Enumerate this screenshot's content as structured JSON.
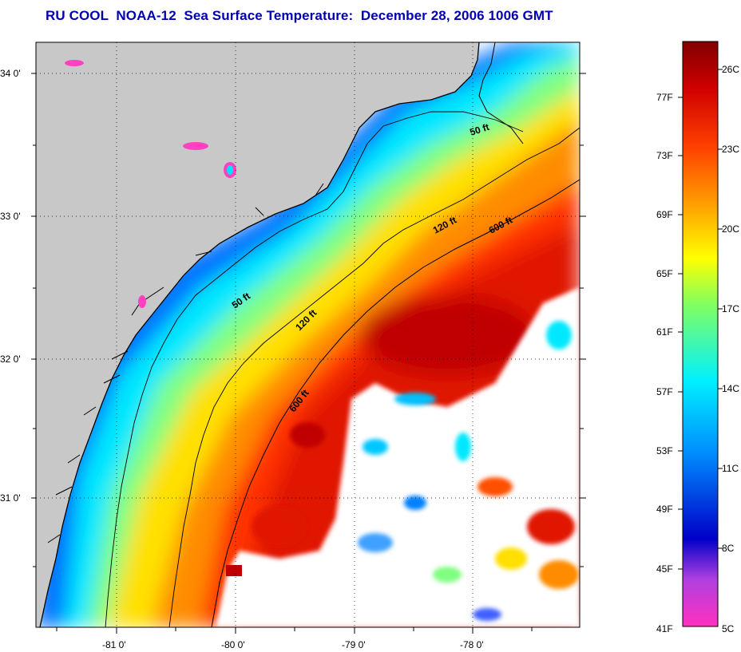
{
  "title": "RU COOL  NOAA-12  Sea Surface Temperature:  December 28, 2006 1006 GMT",
  "map": {
    "lon_ticks": [
      "-81 0'",
      "-80 0'",
      "-79 0'",
      "-78 0'"
    ],
    "lat_ticks": [
      "34 0'",
      "33 0'",
      "32 0'",
      "31 0'"
    ],
    "isobaths": {
      "50ft": "50 ft",
      "120ft": "120 ft",
      "600ft": "600 ft"
    },
    "colors": {
      "land": "#c8c8c8",
      "cloud": "#ffffff",
      "warm": "#e01400",
      "hot": "#b00000",
      "orange": "#ff7800",
      "yellow": "#ffe000",
      "cyan": "#00e8ff",
      "blue": "#0060ff",
      "magenta": "#ff30c0"
    }
  },
  "colorbar": {
    "fahrenheit_labels": [
      "77F",
      "73F",
      "69F",
      "65F",
      "61F",
      "57F",
      "53F",
      "49F",
      "45F",
      "41F"
    ],
    "celsius_labels": [
      "26C",
      "23C",
      "20C",
      "17C",
      "14C",
      "11C",
      "8C",
      "5C"
    ]
  }
}
